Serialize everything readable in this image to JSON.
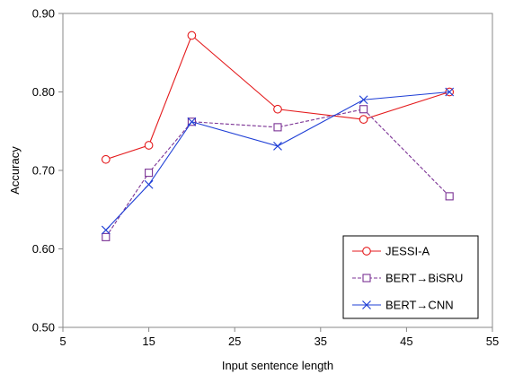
{
  "chart_data": {
    "type": "line",
    "xlabel": "Input sentence length",
    "ylabel": "Accuracy",
    "xlim": [
      5,
      55
    ],
    "ylim": [
      0.5,
      0.9
    ],
    "xticks": [
      5,
      15,
      25,
      35,
      45,
      55
    ],
    "yticks": [
      0.5,
      0.6,
      0.7,
      0.8,
      0.9
    ],
    "xtick_labels": [
      "5",
      "15",
      "25",
      "35",
      "45",
      "55"
    ],
    "ytick_labels": [
      "0.50",
      "0.60",
      "0.70",
      "0.80",
      "0.90"
    ],
    "grid": false,
    "legend_position": "bottom-right",
    "x": [
      10,
      15,
      20,
      30,
      40,
      50
    ],
    "series": [
      {
        "name": "JESSI-A",
        "values": [
          0.714,
          0.732,
          0.872,
          0.778,
          0.765,
          0.8
        ],
        "color": "#e41a1c",
        "marker": "circle",
        "line_style": "solid"
      },
      {
        "name": "BERT→BiSRU",
        "values": [
          0.615,
          0.697,
          0.762,
          0.755,
          0.778,
          0.667
        ],
        "color": "#7b3294",
        "marker": "square",
        "line_style": "dashed"
      },
      {
        "name": "BERT→CNN",
        "values": [
          0.624,
          0.682,
          0.762,
          0.731,
          0.79,
          0.8
        ],
        "color": "#1f3fd6",
        "marker": "x",
        "line_style": "solid"
      }
    ]
  }
}
